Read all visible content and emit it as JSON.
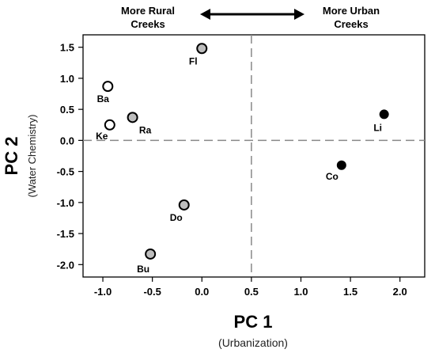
{
  "chart_data": {
    "type": "scatter",
    "title": "",
    "xlabel": "PC 1",
    "xlabel_sub": "(Urbanization)",
    "ylabel": "PC 2",
    "ylabel_sub": "(Water Chemistry)",
    "xlim": [
      -1.2,
      2.25
    ],
    "ylim": [
      -2.2,
      1.7
    ],
    "x_ticks": [
      -1.0,
      -0.5,
      0.0,
      0.5,
      1.0,
      1.5,
      2.0
    ],
    "x_tick_labels": [
      "-1.0",
      "-0.5",
      "0.0",
      "0.5",
      "1.0",
      "1.5",
      "2.0"
    ],
    "y_ticks": [
      -2.0,
      -1.5,
      -1.0,
      -0.5,
      0.0,
      0.5,
      1.0,
      1.5
    ],
    "y_tick_labels": [
      "-2.0",
      "-1.5",
      "-1.0",
      "-0.5",
      "0.0",
      "0.5",
      "1.0",
      "1.5"
    ],
    "reference_lines": {
      "x": 0.5,
      "y": 0.0,
      "style": "dashed"
    },
    "grid": false,
    "top_annotation": {
      "left_text": [
        "More Rural",
        "Creeks"
      ],
      "right_text": [
        "More Urban",
        "Creeks"
      ],
      "arrow": "double-headed"
    },
    "point_colors": {
      "open": "#ffffff",
      "gray": "#bdbdbd",
      "black": "#000000"
    },
    "points": [
      {
        "label": "Fl",
        "x": 0.0,
        "y": 1.48,
        "fill": "gray"
      },
      {
        "label": "Ba",
        "x": -0.95,
        "y": 0.87,
        "fill": "open"
      },
      {
        "label": "Ra",
        "x": -0.7,
        "y": 0.37,
        "fill": "gray"
      },
      {
        "label": "Ke",
        "x": -0.93,
        "y": 0.25,
        "fill": "open"
      },
      {
        "label": "Do",
        "x": -0.18,
        "y": -1.04,
        "fill": "gray"
      },
      {
        "label": "Bu",
        "x": -0.52,
        "y": -1.83,
        "fill": "gray"
      },
      {
        "label": "Li",
        "x": 1.84,
        "y": 0.42,
        "fill": "black"
      },
      {
        "label": "Co",
        "x": 1.41,
        "y": -0.4,
        "fill": "black"
      }
    ]
  }
}
